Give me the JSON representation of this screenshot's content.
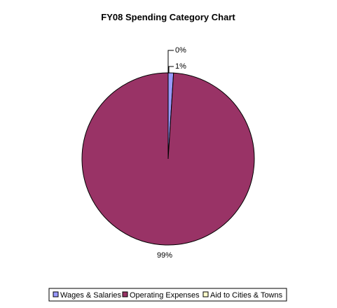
{
  "chart_data": {
    "type": "pie",
    "title": "FY08 Spending Category Chart",
    "slices": [
      {
        "label": "Wages & Salaries",
        "value": 1,
        "percent_label": "1%",
        "color": "#9999ff"
      },
      {
        "label": "Operating Expenses",
        "value": 99,
        "percent_label": "99%",
        "color": "#993366"
      },
      {
        "label": "Aid to Cities & Towns",
        "value": 0,
        "percent_label": "0%",
        "color": "#ffffcc"
      }
    ],
    "legend_position": "bottom",
    "slice_outline_color": "#000000"
  }
}
